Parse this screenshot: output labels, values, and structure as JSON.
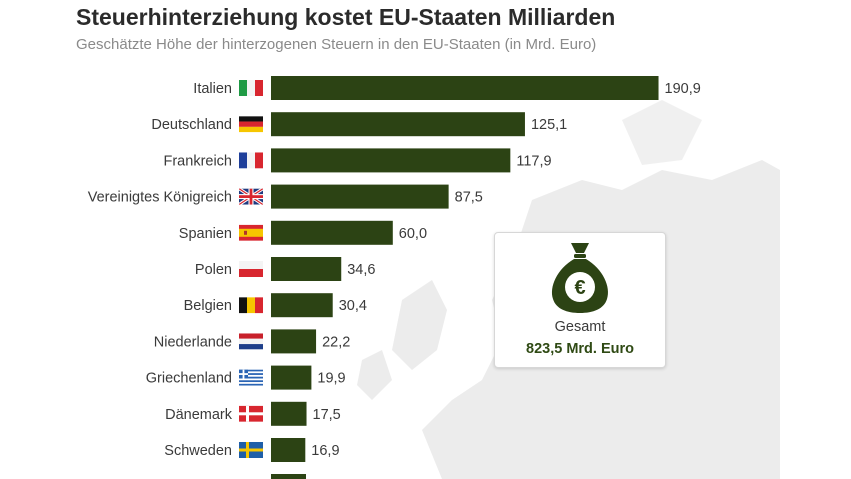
{
  "header": {
    "title": "Steuerhinterziehung kostet EU-Staaten Milliarden",
    "subtitle": "Geschätzte Höhe der hinterzogenen Steuern in den EU-Staaten (in Mrd. Euro)"
  },
  "summary": {
    "label": "Gesamt",
    "value": "823,5 Mrd. Euro",
    "icon": "money-bag-euro-icon"
  },
  "colors": {
    "bar": "#2c4314",
    "accent": "#2f4a14",
    "map": "#e9e9e9"
  },
  "chart_data": {
    "type": "bar",
    "orientation": "horizontal",
    "title": "Steuerhinterziehung kostet EU-Staaten Milliarden",
    "subtitle": "Geschätzte Höhe der hinterzogenen Steuern in den EU-Staaten (in Mrd. Euro)",
    "unit": "Mrd. Euro",
    "xlim": [
      0,
      200
    ],
    "categories": [
      "Italien",
      "Deutschland",
      "Frankreich",
      "Vereinigtes Königreich",
      "Spanien",
      "Polen",
      "Belgien",
      "Niederlande",
      "Griechenland",
      "Dänemark",
      "Schweden"
    ],
    "values": [
      190.9,
      125.1,
      117.9,
      87.5,
      60.0,
      34.6,
      30.4,
      22.2,
      19.9,
      17.5,
      16.9
    ],
    "value_labels": [
      "190,9",
      "125,1",
      "117,9",
      "87,5",
      "60,0",
      "34,6",
      "30,4",
      "22,2",
      "19,9",
      "17,5",
      "16,9"
    ],
    "flags": [
      "flag-it",
      "flag-de",
      "flag-fr",
      "flag-gb",
      "flag-es",
      "flag-pl",
      "flag-be",
      "flag-nl",
      "flag-gr",
      "flag-dk",
      "flag-se"
    ]
  }
}
